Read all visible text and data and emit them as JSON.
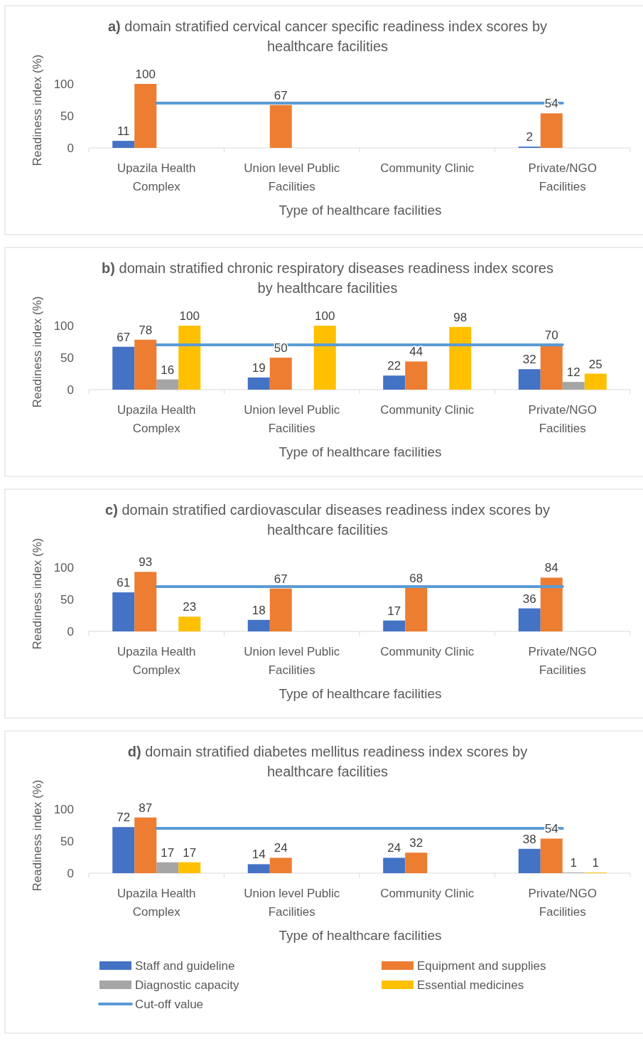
{
  "chart_data": [
    {
      "type": "bar",
      "title": "a) domain stratified cervical cancer specific readiness index scores by healthcare facilities",
      "xlabel": "Type of healthcare facilities",
      "ylabel": "Readiness index (%)",
      "categories": [
        "Upazila Health Complex",
        "Union level Public Facilities",
        "Community Clinic",
        "Private/NGO Facilities"
      ],
      "ylim": [
        0,
        100
      ],
      "yticks": [
        0,
        50,
        100
      ],
      "grid": false,
      "legend": false,
      "series": [
        {
          "color": "#4472c4",
          "values": [
            11,
            null,
            null,
            2
          ],
          "value_labels": [
            "11",
            null,
            null,
            "2"
          ]
        },
        {
          "color": "#ed7d31",
          "values": [
            100,
            67,
            null,
            54
          ],
          "value_labels": [
            "100",
            "67",
            null,
            "54"
          ]
        },
        {
          "values": [
            null,
            null,
            null,
            null
          ]
        },
        {
          "values": [
            null,
            null,
            null,
            null
          ]
        },
        {
          "type": "line",
          "color": "#5b9bd5",
          "values": [
            70,
            70,
            70,
            70
          ]
        }
      ]
    },
    {
      "type": "bar",
      "title": "b) domain stratified chronic respiratory diseases readiness index scores by healthcare facilities",
      "xlabel": "Type of healthcare facilities",
      "ylabel": "Readiness index (%)",
      "categories": [
        "Upazila Health Complex",
        "Union level Public Facilities",
        "Community Clinic",
        "Private/NGO Facilities"
      ],
      "ylim": [
        0,
        100
      ],
      "yticks": [
        0,
        50,
        100
      ],
      "grid": false,
      "legend": false,
      "series": [
        {
          "color": "#4472c4",
          "values": [
            67,
            19,
            22,
            32
          ],
          "value_labels": [
            "67",
            "19",
            "22",
            "32"
          ]
        },
        {
          "color": "#ed7d31",
          "values": [
            78,
            50,
            44,
            70
          ],
          "value_labels": [
            "78",
            "50",
            "44",
            "70"
          ]
        },
        {
          "color": "#a5a5a5",
          "values": [
            16,
            null,
            null,
            12
          ],
          "value_labels": [
            "16",
            null,
            null,
            "12"
          ]
        },
        {
          "color": "#ffc000",
          "values": [
            100,
            100,
            98,
            25
          ],
          "value_labels": [
            "100",
            "100",
            "98",
            "25"
          ]
        },
        {
          "type": "line",
          "color": "#5b9bd5",
          "values": [
            70,
            70,
            70,
            70
          ]
        }
      ]
    },
    {
      "type": "bar",
      "title": "c) domain stratified cardiovascular diseases readiness index scores by healthcare facilities",
      "xlabel": "Type of healthcare facilities",
      "ylabel": "Readiness index (%)",
      "categories": [
        "Upazila Health Complex",
        "Union level Public Facilities",
        "Community Clinic",
        "Private/NGO Facilities"
      ],
      "ylim": [
        0,
        100
      ],
      "yticks": [
        0,
        50,
        100
      ],
      "grid": false,
      "legend": false,
      "series": [
        {
          "color": "#4472c4",
          "values": [
            61,
            18,
            17,
            36
          ],
          "value_labels": [
            "61",
            "18",
            "17",
            "36"
          ]
        },
        {
          "color": "#ed7d31",
          "values": [
            93,
            67,
            68,
            84
          ],
          "value_labels": [
            "93",
            "67",
            "68",
            "84"
          ]
        },
        {
          "values": [
            null,
            null,
            null,
            null
          ]
        },
        {
          "color": "#ffc000",
          "values": [
            23,
            null,
            null,
            null
          ],
          "value_labels": [
            "23",
            null,
            null,
            null
          ]
        },
        {
          "type": "line",
          "color": "#5b9bd5",
          "values": [
            70,
            70,
            70,
            70
          ]
        }
      ]
    },
    {
      "type": "bar",
      "title": "d) domain stratified diabetes mellitus readiness index scores by healthcare facilities",
      "xlabel": "Type of healthcare facilities",
      "ylabel": "Readiness index (%)",
      "categories": [
        "Upazila Health Complex",
        "Union level Public Facilities",
        "Community Clinic",
        "Private/NGO Facilities"
      ],
      "ylim": [
        0,
        100
      ],
      "yticks": [
        0,
        50,
        100
      ],
      "grid": false,
      "legend": "bottom",
      "series": [
        {
          "name": "Staff and guideline",
          "color": "#4472c4",
          "values": [
            72,
            14,
            24,
            38
          ],
          "value_labels": [
            "72",
            "14",
            "24",
            "38"
          ]
        },
        {
          "name": "Equipment and supplies",
          "color": "#ed7d31",
          "values": [
            87,
            24,
            32,
            54
          ],
          "value_labels": [
            "87",
            "24",
            "32",
            "54"
          ]
        },
        {
          "name": "Diagnostic capacity",
          "color": "#a5a5a5",
          "values": [
            17,
            null,
            null,
            1
          ],
          "value_labels": [
            "17",
            null,
            null,
            "1"
          ]
        },
        {
          "name": "Essential medicines",
          "color": "#ffc000",
          "values": [
            17,
            null,
            null,
            1
          ],
          "value_labels": [
            "17",
            null,
            null,
            "1"
          ]
        },
        {
          "name": "Cut-off value",
          "type": "line",
          "color": "#5b9bd5",
          "values": [
            70,
            70,
            70,
            70
          ]
        }
      ]
    }
  ]
}
